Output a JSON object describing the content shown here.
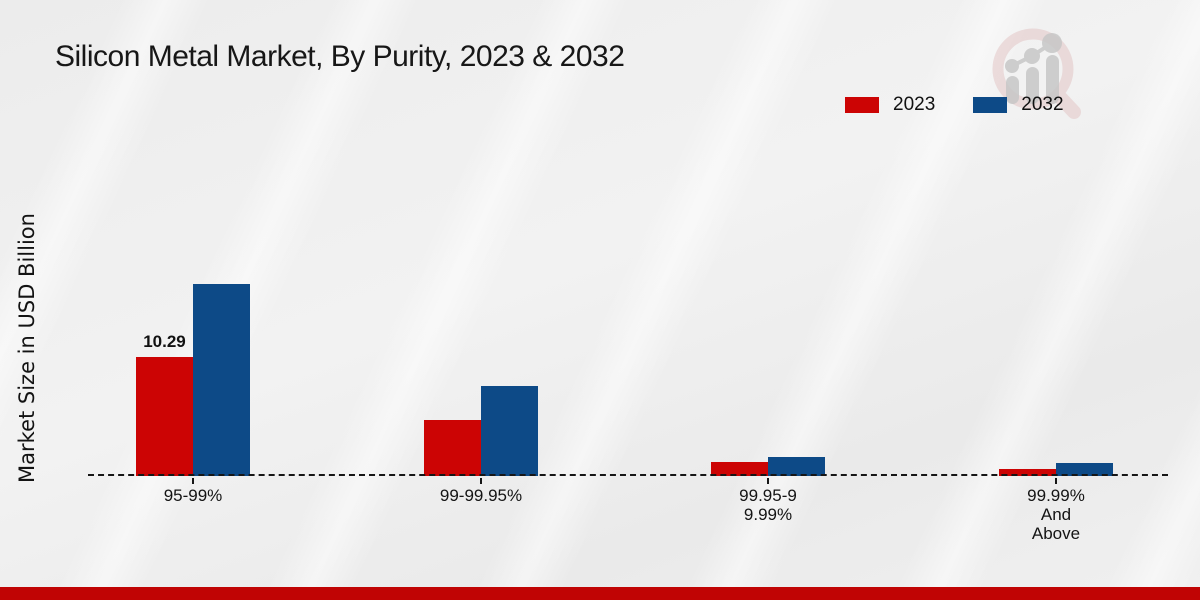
{
  "page": {
    "title": "Silicon Metal Market, By Purity, 2023 & 2032"
  },
  "icons": {
    "brand_logo": "magnifier-growth-chart-watermark"
  },
  "footer": {
    "bar_color": "#c00404"
  },
  "chart_data": {
    "type": "bar",
    "title": "Silicon Metal Market, By Purity, 2023 & 2032",
    "xlabel": "",
    "ylabel": "Market Size in USD Billion",
    "categories": [
      "95-99%",
      "99-99.95%",
      "99.95-9\n9.99%",
      "99.99%\nAnd\nAbove"
    ],
    "series": [
      {
        "name": "2023",
        "color": "#cc0404",
        "values": [
          10.29,
          4.8,
          1.2,
          0.6
        ]
      },
      {
        "name": "2032",
        "color": "#0d4a87",
        "values": [
          16.6,
          7.8,
          1.6,
          1.1
        ]
      }
    ],
    "value_labels": [
      {
        "series_index": 0,
        "category_index": 0,
        "text": "10.29"
      }
    ],
    "ylim": [
      0,
      26
    ],
    "grid": false,
    "baseline_style": "dashed",
    "legend_position": "top-right"
  }
}
